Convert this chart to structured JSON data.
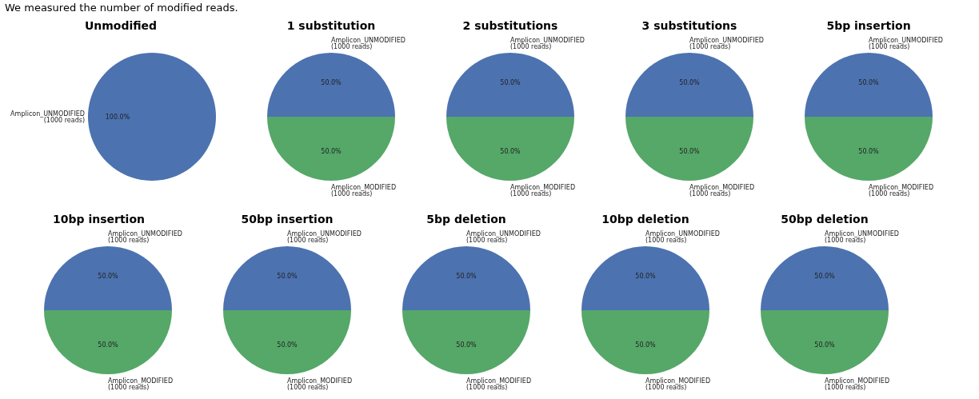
{
  "chart_data": [
    {
      "type": "pie",
      "title": "Unmodified",
      "annotations": [
        "We measured the number of modified reads."
      ],
      "categories": [
        "Amplicon_UNMODIFIED\n(1000 reads)"
      ],
      "values": [
        100
      ],
      "colors": [
        "#4c72b0"
      ],
      "value_labels": [
        "100.0%"
      ]
    },
    {
      "type": "pie",
      "title": "1 substitution",
      "categories": [
        "Amplicon_UNMODIFIED\n(1000 reads)",
        "Amplicon_MODIFIED\n(1000 reads)"
      ],
      "values": [
        50,
        50
      ],
      "colors": [
        "#4c72b0",
        "#55a868"
      ],
      "value_labels": [
        "50.0%",
        "50.0%"
      ]
    },
    {
      "type": "pie",
      "title": "2 substitutions",
      "categories": [
        "Amplicon_UNMODIFIED\n(1000 reads)",
        "Amplicon_MODIFIED\n(1000 reads)"
      ],
      "values": [
        50,
        50
      ],
      "colors": [
        "#4c72b0",
        "#55a868"
      ],
      "value_labels": [
        "50.0%",
        "50.0%"
      ]
    },
    {
      "type": "pie",
      "title": "3 substitutions",
      "categories": [
        "Amplicon_UNMODIFIED\n(1000 reads)",
        "Amplicon_MODIFIED\n(1000 reads)"
      ],
      "values": [
        50,
        50
      ],
      "colors": [
        "#4c72b0",
        "#55a868"
      ],
      "value_labels": [
        "50.0%",
        "50.0%"
      ]
    },
    {
      "type": "pie",
      "title": "5bp insertion",
      "categories": [
        "Amplicon_UNMODIFIED\n(1000 reads)",
        "Amplicon_MODIFIED\n(1000 reads)"
      ],
      "values": [
        50,
        50
      ],
      "colors": [
        "#4c72b0",
        "#55a868"
      ],
      "value_labels": [
        "50.0%",
        "50.0%"
      ]
    },
    {
      "type": "pie",
      "title": "10bp insertion",
      "categories": [
        "Amplicon_UNMODIFIED\n(1000 reads)",
        "Amplicon_MODIFIED\n(1000 reads)"
      ],
      "values": [
        50,
        50
      ],
      "colors": [
        "#4c72b0",
        "#55a868"
      ],
      "value_labels": [
        "50.0%",
        "50.0%"
      ]
    },
    {
      "type": "pie",
      "title": "50bp insertion",
      "categories": [
        "Amplicon_UNMODIFIED\n(1000 reads)",
        "Amplicon_MODIFIED\n(1000 reads)"
      ],
      "values": [
        50,
        50
      ],
      "colors": [
        "#4c72b0",
        "#55a868"
      ],
      "value_labels": [
        "50.0%",
        "50.0%"
      ]
    },
    {
      "type": "pie",
      "title": "5bp deletion",
      "categories": [
        "Amplicon_UNMODIFIED\n(1000 reads)",
        "Amplicon_MODIFIED\n(1000 reads)"
      ],
      "values": [
        50,
        50
      ],
      "colors": [
        "#4c72b0",
        "#55a868"
      ],
      "value_labels": [
        "50.0%",
        "50.0%"
      ]
    },
    {
      "type": "pie",
      "title": "10bp deletion",
      "categories": [
        "Amplicon_UNMODIFIED\n(1000 reads)",
        "Amplicon_MODIFIED\n(1000 reads)"
      ],
      "values": [
        50,
        50
      ],
      "colors": [
        "#4c72b0",
        "#55a868"
      ],
      "value_labels": [
        "50.0%",
        "50.0%"
      ]
    },
    {
      "type": "pie",
      "title": "50bp deletion",
      "categories": [
        "Amplicon_UNMODIFIED\n(1000 reads)",
        "Amplicon_MODIFIED\n(1000 reads)"
      ],
      "values": [
        50,
        50
      ],
      "colors": [
        "#4c72b0",
        "#55a868"
      ],
      "value_labels": [
        "50.0%",
        "50.0%"
      ]
    }
  ]
}
